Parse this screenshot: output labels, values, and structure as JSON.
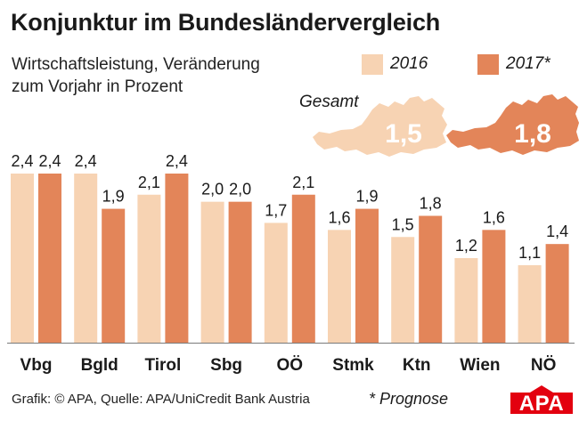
{
  "header": {
    "title": "Konjunktur im Bundesländervergleich",
    "subtitle_line1": "Wirtschaftsleistung, Veränderung",
    "subtitle_line2": "zum Vorjahr in Prozent"
  },
  "legend": [
    {
      "label": "2016",
      "color": "#f7d3b3"
    },
    {
      "label": "2017*",
      "color": "#e38559"
    }
  ],
  "gesamt": {
    "label": "Gesamt",
    "value_2016": "1,5",
    "value_2017": "1,8",
    "icon": "austria-map-icon"
  },
  "chart_data": {
    "type": "bar",
    "title": "Konjunktur im Bundesländervergleich",
    "ylabel": "Wirtschaftsleistung, Veränderung zum Vorjahr in Prozent",
    "xlabel": "",
    "ylim": [
      0,
      2.4
    ],
    "categories": [
      "Vbg",
      "Bgld",
      "Tirol",
      "Sbg",
      "OÖ",
      "Stmk",
      "Ktn",
      "Wien",
      "NÖ"
    ],
    "series": [
      {
        "name": "2016",
        "color": "#f7d3b3",
        "values": [
          2.4,
          2.4,
          2.1,
          2.0,
          1.7,
          1.6,
          1.5,
          1.2,
          1.1
        ],
        "labels": [
          "2,4",
          "2,4",
          "2,1",
          "2,0",
          "1,7",
          "1,6",
          "1,5",
          "1,2",
          "1,1"
        ]
      },
      {
        "name": "2017*",
        "color": "#e38559",
        "values": [
          2.4,
          1.9,
          2.4,
          2.0,
          2.1,
          1.9,
          1.8,
          1.6,
          1.4
        ],
        "labels": [
          "2,4",
          "1,9",
          "2,4",
          "2,0",
          "2,1",
          "1,9",
          "1,8",
          "1,6",
          "1,4"
        ]
      }
    ],
    "grid": false,
    "legend_position": "top-right"
  },
  "footer": {
    "source": "Grafik: © APA, Quelle: APA/UniCredit Bank Austria",
    "note": "* Prognose",
    "logo_text": "APA",
    "logo_color": "#e3000f"
  }
}
